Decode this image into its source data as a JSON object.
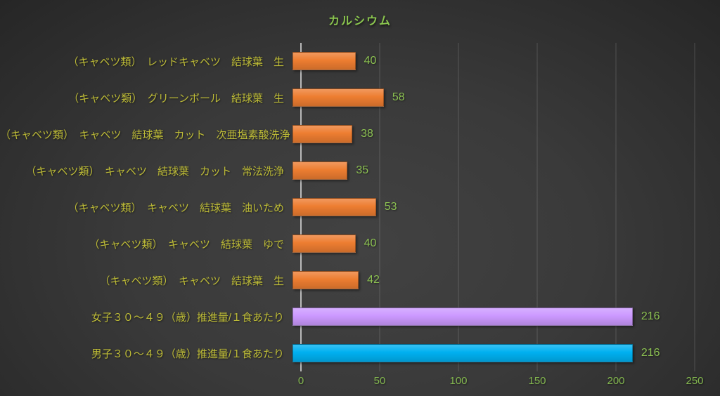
{
  "title": "カルシウム",
  "colors": {
    "title_text": "#8ac54e",
    "category_label": "#bdbb37",
    "value_label": "#8cc152",
    "tick_label": "#84b850",
    "gridline": "#5a5a5a",
    "axis_line": "#d9d9d9",
    "bar_orange": "#ed7d31",
    "bar_purple": "#cc99ff",
    "bar_blue": "#00b0f0",
    "background_center": "#424242",
    "background_edge": "#262626"
  },
  "chart_data": {
    "type": "bar",
    "orientation": "horizontal",
    "title": "カルシウム",
    "categories": [
      "（キャベツ類）　レッドキャベツ　結球葉　生",
      "（キャベツ類）　グリーンボール　結球葉　生",
      "（キャベツ類）　キャベツ　結球葉　カット　次亜塩素酸洗浄",
      "（キャベツ類）　キャベツ　結球葉　カット　常法洗浄",
      "（キャベツ類）　キャベツ　結球葉　油いため",
      "（キャベツ類）　キャベツ　結球葉　ゆで",
      "（キャベツ類）　キャベツ　結球葉　生",
      "女子３０～４９（歳）推進量/１食あたり",
      "男子３０～４９（歳）推進量/１食あたり"
    ],
    "values": [
      40,
      58,
      38,
      35,
      53,
      40,
      42,
      216,
      216
    ],
    "bar_colors": [
      "#ed7d31",
      "#ed7d31",
      "#ed7d31",
      "#ed7d31",
      "#ed7d31",
      "#ed7d31",
      "#ed7d31",
      "#cc99ff",
      "#00b0f0"
    ],
    "value_labels_shown": true,
    "xlabel": "",
    "ylabel": "",
    "xlim": [
      0,
      250
    ],
    "xticks": [
      0,
      50,
      100,
      150,
      200,
      250
    ],
    "grid": true,
    "legend": "none"
  }
}
